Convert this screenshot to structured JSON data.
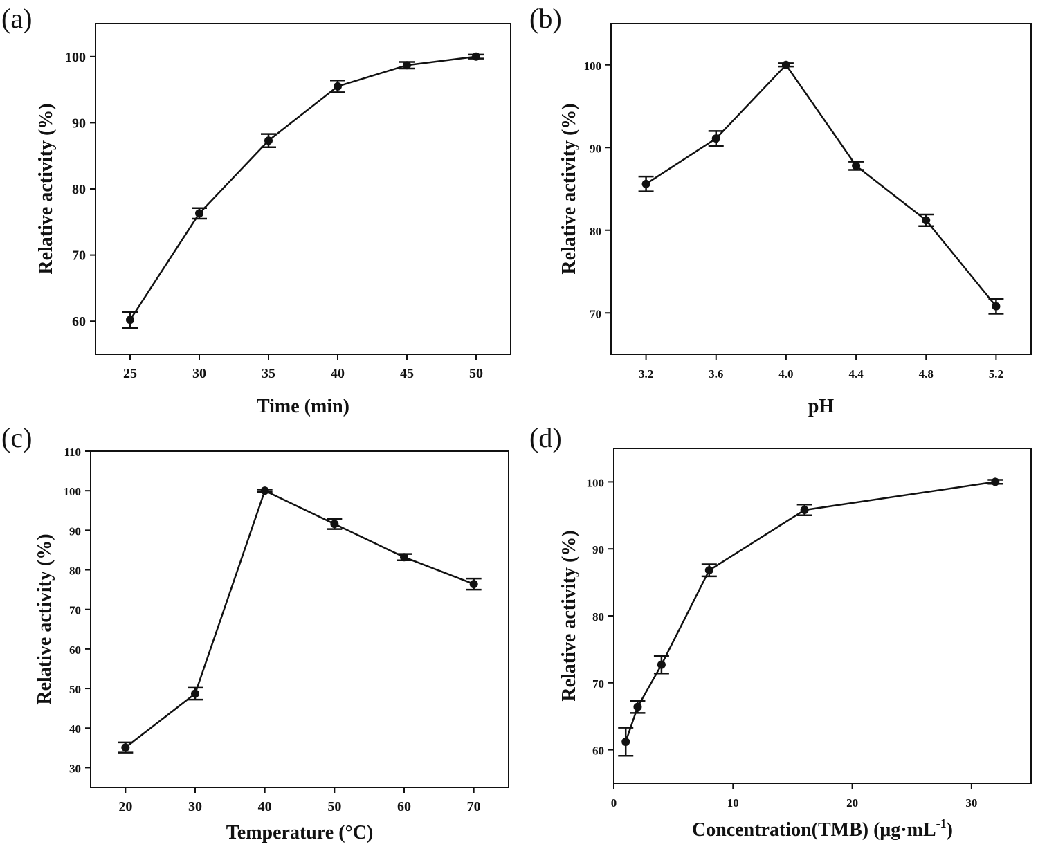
{
  "chart_data": [
    {
      "panel": "(a)",
      "type": "line",
      "xlabel": "Time (min)",
      "ylabel": "Relative activity (%)",
      "x": [
        25,
        30,
        35,
        40,
        45,
        50
      ],
      "values": [
        60.2,
        76.3,
        87.3,
        95.5,
        98.7,
        100
      ],
      "errors": [
        1.2,
        0.8,
        1.0,
        0.9,
        0.5,
        0.3
      ],
      "xticks": [
        25,
        30,
        35,
        40,
        45,
        50
      ],
      "xtick_labels": [
        "25",
        "30",
        "35",
        "40",
        "45",
        "50"
      ],
      "yticks": [
        60,
        70,
        80,
        90,
        100
      ],
      "ytick_labels": [
        "60",
        "70",
        "80",
        "90",
        "100"
      ],
      "xlim": [
        22.5,
        52.5
      ],
      "ylim": [
        55,
        105
      ]
    },
    {
      "panel": "(b)",
      "type": "line",
      "xlabel": "pH",
      "ylabel": "Relative activity (%)",
      "x": [
        3.2,
        3.6,
        4.0,
        4.4,
        4.8,
        5.2
      ],
      "values": [
        85.6,
        91.1,
        100,
        87.8,
        81.2,
        70.8
      ],
      "errors": [
        0.9,
        0.9,
        0.2,
        0.5,
        0.7,
        0.9
      ],
      "xticks": [
        3.2,
        3.6,
        4.0,
        4.4,
        4.8,
        5.2
      ],
      "xtick_labels": [
        "3.2",
        "3.6",
        "4.0",
        "4.4",
        "4.8",
        "5.2"
      ],
      "yticks": [
        70,
        80,
        90,
        100
      ],
      "ytick_labels": [
        "70",
        "80",
        "90",
        "100"
      ],
      "xlim": [
        3.0,
        5.4
      ],
      "ylim": [
        65,
        105
      ]
    },
    {
      "panel": "(c)",
      "type": "line",
      "xlabel": "Temperature (°C)",
      "ylabel": "Relative activity (%)",
      "x": [
        20,
        30,
        40,
        50,
        60,
        70
      ],
      "values": [
        35.1,
        48.7,
        100,
        91.6,
        83.2,
        76.4
      ],
      "errors": [
        1.3,
        1.5,
        0.3,
        1.3,
        0.8,
        1.4
      ],
      "xticks": [
        20,
        30,
        40,
        50,
        60,
        70
      ],
      "xtick_labels": [
        "20",
        "30",
        "40",
        "50",
        "60",
        "70"
      ],
      "yticks": [
        30,
        40,
        50,
        60,
        70,
        80,
        90,
        100,
        110
      ],
      "ytick_labels": [
        "30",
        "40",
        "50",
        "60",
        "70",
        "80",
        "90",
        "100",
        "110"
      ],
      "xlim": [
        15,
        75
      ],
      "ylim": [
        25,
        110
      ]
    },
    {
      "panel": "(d)",
      "type": "line",
      "xlabel": "Concentration(TMB) (μg·mL",
      "xlabel_superscript": "-1",
      "xlabel_suffix": ")",
      "ylabel": "Relative activity (%)",
      "x": [
        1,
        2,
        4,
        8,
        16,
        32
      ],
      "values": [
        61.2,
        66.4,
        72.7,
        86.8,
        95.8,
        100
      ],
      "errors": [
        2.1,
        0.9,
        1.3,
        0.9,
        0.8,
        0.3
      ],
      "xticks": [
        0,
        10,
        20,
        30
      ],
      "xtick_labels": [
        "0",
        "10",
        "20",
        "30"
      ],
      "yticks": [
        60,
        70,
        80,
        90,
        100
      ],
      "ytick_labels": [
        "60",
        "70",
        "80",
        "90",
        "100"
      ],
      "xlim": [
        0,
        35
      ],
      "ylim": [
        55,
        105
      ]
    }
  ]
}
